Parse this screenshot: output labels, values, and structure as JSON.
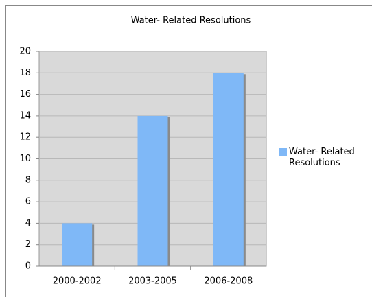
{
  "chart_data": {
    "type": "bar",
    "title": "Water- Related Resolutions",
    "categories": [
      "2000-2002",
      "2003-2005",
      "2006-2008"
    ],
    "series": [
      {
        "name": "Water- Related Resolutions",
        "color": "#7fb8f7",
        "values": [
          4,
          14,
          18
        ]
      }
    ],
    "ylim": [
      0,
      20
    ],
    "yticks": [
      0,
      2,
      4,
      6,
      8,
      10,
      12,
      14,
      16,
      18,
      20
    ],
    "grid": true,
    "legend": "right"
  }
}
